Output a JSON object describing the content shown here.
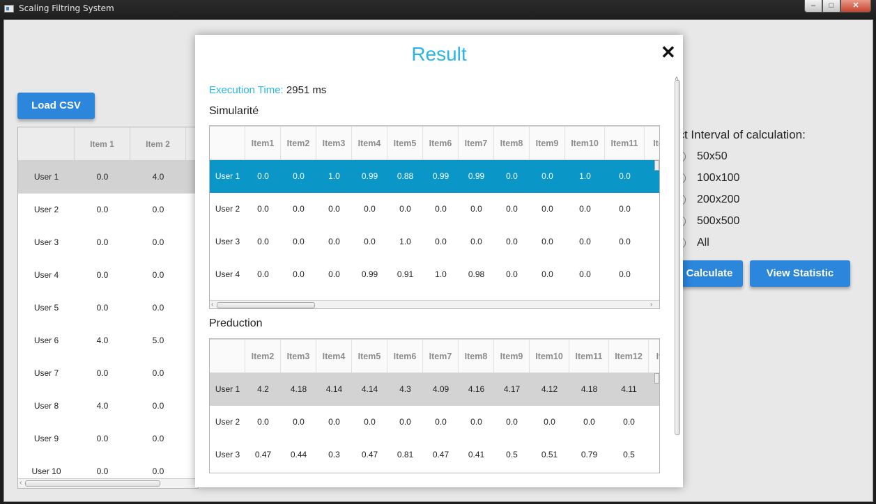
{
  "window": {
    "title": "Scaling Filtring System",
    "min": "–",
    "max": "□",
    "close": "✕"
  },
  "main": {
    "load_csv": "Load CSV",
    "table": {
      "headers": [
        "",
        "Item 1",
        "Item 2"
      ],
      "rows": [
        [
          "User 1",
          "0.0",
          "4.0"
        ],
        [
          "User 2",
          "0.0",
          "0.0"
        ],
        [
          "User 3",
          "0.0",
          "0.0"
        ],
        [
          "User 4",
          "0.0",
          "0.0"
        ],
        [
          "User 5",
          "0.0",
          "0.0"
        ],
        [
          "User 6",
          "4.0",
          "5.0"
        ],
        [
          "User 7",
          "0.0",
          "0.0"
        ],
        [
          "User 8",
          "4.0",
          "0.0"
        ],
        [
          "User 9",
          "0.0",
          "0.0"
        ],
        [
          "User 10",
          "0.0",
          "0.0"
        ]
      ]
    },
    "interval": {
      "label": "ect Interval of calculation:",
      "options": [
        "50x50",
        "100x100",
        "200x200",
        "500x500",
        "All"
      ],
      "selected_index": 1
    },
    "calculate": "Calculate",
    "view_statistic": "View Statistic"
  },
  "dialog": {
    "title": "Result",
    "close_glyph": "✕",
    "exec_label": "Execution Time:",
    "exec_value": "2951 ms",
    "sim": {
      "title": "Simularité",
      "headers": [
        "",
        "Item1",
        "Item2",
        "Item3",
        "Item4",
        "Item5",
        "Item6",
        "Item7",
        "Item8",
        "Item9",
        "Item10",
        "Item11",
        "Ite"
      ],
      "rows": [
        [
          "User 1",
          "0.0",
          "0.0",
          "1.0",
          "0.99",
          "0.88",
          "0.99",
          "0.99",
          "0.0",
          "0.0",
          "1.0",
          "0.0"
        ],
        [
          "User 2",
          "0.0",
          "0.0",
          "0.0",
          "0.0",
          "0.0",
          "0.0",
          "0.0",
          "0.0",
          "0.0",
          "0.0",
          "0.0"
        ],
        [
          "User 3",
          "0.0",
          "0.0",
          "0.0",
          "0.0",
          "1.0",
          "0.0",
          "0.0",
          "0.0",
          "0.0",
          "0.0",
          "0.0"
        ],
        [
          "User 4",
          "0.0",
          "0.0",
          "0.0",
          "0.99",
          "0.91",
          "1.0",
          "0.98",
          "0.0",
          "0.0",
          "0.0",
          "0.0"
        ]
      ]
    },
    "pred": {
      "title": "Preduction",
      "headers": [
        "",
        "Item2",
        "Item3",
        "Item4",
        "Item5",
        "Item6",
        "Item7",
        "Item8",
        "Item9",
        "Item10",
        "Item11",
        "Item12",
        "It"
      ],
      "rows": [
        [
          "User 1",
          "4.2",
          "4.18",
          "4.14",
          "4.14",
          "4.3",
          "4.09",
          "4.16",
          "4.17",
          "4.12",
          "4.18",
          "4.11"
        ],
        [
          "User 2",
          "0.0",
          "0.0",
          "0.0",
          "0.0",
          "0.0",
          "0.0",
          "0.0",
          "0.0",
          "0.0",
          "0.0",
          "0.0"
        ],
        [
          "User 3",
          "0.47",
          "0.44",
          "0.3",
          "0.47",
          "0.81",
          "0.47",
          "0.41",
          "0.5",
          "0.51",
          "0.79",
          "0.5"
        ]
      ]
    }
  }
}
